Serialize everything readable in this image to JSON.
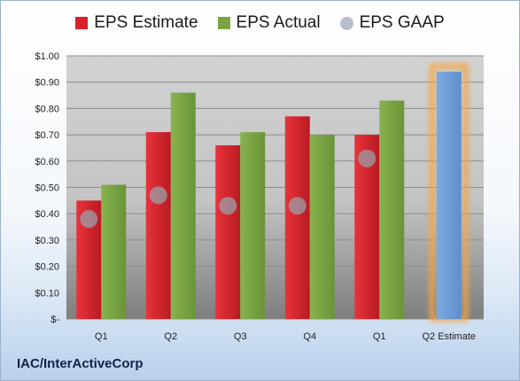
{
  "legend": [
    {
      "label": "EPS Estimate",
      "color": "#d9202a",
      "shape": "square"
    },
    {
      "label": "EPS Actual",
      "color": "#7aa542",
      "shape": "square"
    },
    {
      "label": "EPS GAAP",
      "color": "#b7bfcc",
      "shape": "circle"
    }
  ],
  "company": "IAC/InterActiveCorp",
  "chart_data": {
    "type": "bar",
    "categories": [
      "Q1",
      "Q2",
      "Q3",
      "Q4",
      "Q1",
      "Q2 Estimate"
    ],
    "series": [
      {
        "name": "EPS Estimate",
        "values": [
          0.45,
          0.71,
          0.66,
          0.77,
          0.7,
          null
        ],
        "color": "#d9202a"
      },
      {
        "name": "EPS Actual",
        "values": [
          0.51,
          0.86,
          0.71,
          0.7,
          0.83,
          null
        ],
        "color": "#7aa542"
      },
      {
        "name": "EPS GAAP",
        "values": [
          0.38,
          0.47,
          0.43,
          0.43,
          0.61,
          null
        ],
        "color": "#9aa0a8"
      }
    ],
    "forecast": {
      "category": "Q2 Estimate",
      "value": 0.94,
      "color": "#6f9fd8",
      "glow": "#f5a545"
    },
    "yticks": [
      "$-",
      "$0.10",
      "$0.20",
      "$0.30",
      "$0.40",
      "$0.50",
      "$0.60",
      "$0.70",
      "$0.80",
      "$0.90",
      "$1.00"
    ],
    "ylim": [
      0,
      1.0
    ],
    "grid": true
  }
}
